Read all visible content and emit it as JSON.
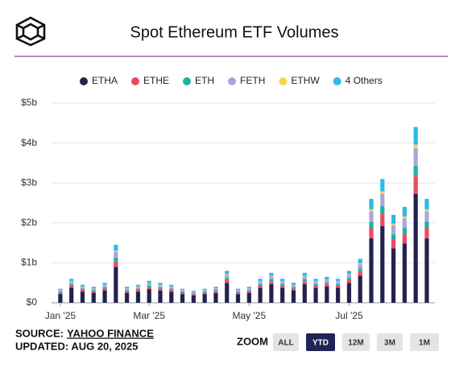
{
  "chart_data": {
    "type": "stacked-bar",
    "title": "Spot Ethereum ETF Volumes",
    "categories": [
      "Jan '25",
      null,
      null,
      null,
      null,
      null,
      null,
      null,
      "Mar '25",
      null,
      null,
      null,
      null,
      null,
      null,
      null,
      null,
      "May '25",
      null,
      null,
      null,
      null,
      null,
      null,
      null,
      null,
      "Jul '25",
      null,
      null,
      null,
      null,
      null,
      null,
      null
    ],
    "series": [
      {
        "name": "ETHA",
        "color": "#23224f",
        "values": [
          217000000.0,
          372000000.0,
          279000000.0,
          248000000.0,
          310000000.0,
          899000000.0,
          248000000.0,
          279000000.0,
          341000000.0,
          310000000.0,
          279000000.0,
          217000000.0,
          186000000.0,
          217000000.0,
          248000000.0,
          496000000.0,
          217000000.0,
          248000000.0,
          372000000.0,
          465000000.0,
          372000000.0,
          310000000.0,
          465000000.0,
          372000000.0,
          403000000.0,
          372000000.0,
          496000000.0,
          682000000.0,
          1612000000.0,
          1922000000.0,
          1364000000.0,
          1488000000.0,
          2728000000.0,
          1612000000.0
        ]
      },
      {
        "name": "ETHE",
        "color": "#ec4a64",
        "values": [
          35000000.0,
          60000000.0,
          45000000.0,
          40000000.0,
          50000000.0,
          145000000.0,
          40000000.0,
          45000000.0,
          55000000.0,
          50000000.0,
          45000000.0,
          35000000.0,
          30000000.0,
          35000000.0,
          40000000.0,
          80000000.0,
          35000000.0,
          40000000.0,
          60000000.0,
          75000000.0,
          60000000.0,
          50000000.0,
          75000000.0,
          60000000.0,
          65000000.0,
          60000000.0,
          80000000.0,
          110000000.0,
          260000000.0,
          310000000.0,
          220000000.0,
          240000000.0,
          440000000.0,
          260000000.0
        ]
      },
      {
        "name": "ETH",
        "color": "#1ab3a4",
        "values": [
          21000000.0,
          36000000.0,
          27000000.0,
          24000000.0,
          30000000.0,
          87000000.0,
          24000000.0,
          27000000.0,
          33000000.0,
          30000000.0,
          27000000.0,
          21000000.0,
          18000000.0,
          21000000.0,
          24000000.0,
          48000000.0,
          21000000.0,
          24000000.0,
          36000000.0,
          45000000.0,
          36000000.0,
          30000000.0,
          45000000.0,
          36000000.0,
          39000000.0,
          36000000.0,
          48000000.0,
          66000000.0,
          156000000.0,
          186000000.0,
          132000000.0,
          144000000.0,
          264000000.0,
          156000000.0
        ]
      },
      {
        "name": "FETH",
        "color": "#aba4df",
        "values": [
          35000000.0,
          60000000.0,
          45000000.0,
          40000000.0,
          50000000.0,
          145000000.0,
          40000000.0,
          45000000.0,
          55000000.0,
          50000000.0,
          45000000.0,
          35000000.0,
          30000000.0,
          35000000.0,
          40000000.0,
          80000000.0,
          35000000.0,
          40000000.0,
          60000000.0,
          75000000.0,
          60000000.0,
          50000000.0,
          75000000.0,
          60000000.0,
          65000000.0,
          60000000.0,
          80000000.0,
          110000000.0,
          260000000.0,
          310000000.0,
          220000000.0,
          240000000.0,
          440000000.0,
          260000000.0
        ]
      },
      {
        "name": "ETHW",
        "color": "#f4d64a",
        "values": [
          7000000.0,
          12000000.0,
          9000000.0,
          8000000.0,
          10000000.0,
          29000000.0,
          8000000.0,
          9000000.0,
          11000000.0,
          10000000.0,
          9000000.0,
          7000000.0,
          6000000.0,
          7000000.0,
          8000000.0,
          16000000.0,
          7000000.0,
          8000000.0,
          12000000.0,
          15000000.0,
          12000000.0,
          10000000.0,
          15000000.0,
          12000000.0,
          13000000.0,
          12000000.0,
          16000000.0,
          22000000.0,
          52000000.0,
          62000000.0,
          44000000.0,
          48000000.0,
          88000000.0,
          52000000.0
        ]
      },
      {
        "name": "4 Others",
        "color": "#2cbbe6",
        "values": [
          35000000.0,
          60000000.0,
          45000000.0,
          40000000.0,
          50000000.0,
          145000000.0,
          40000000.0,
          45000000.0,
          55000000.0,
          50000000.0,
          45000000.0,
          35000000.0,
          30000000.0,
          35000000.0,
          40000000.0,
          80000000.0,
          35000000.0,
          40000000.0,
          60000000.0,
          75000000.0,
          60000000.0,
          50000000.0,
          75000000.0,
          60000000.0,
          65000000.0,
          60000000.0,
          80000000.0,
          110000000.0,
          260000000.0,
          310000000.0,
          220000000.0,
          240000000.0,
          440000000.0,
          260000000.0
        ]
      }
    ],
    "ylim": [
      0,
      5000000000
    ],
    "yticks": [
      {
        "value": 0,
        "label": "$0"
      },
      {
        "value": 1000000000,
        "label": "$1b"
      },
      {
        "value": 2000000000,
        "label": "$2b"
      },
      {
        "value": 3000000000,
        "label": "$3b"
      },
      {
        "value": 4000000000,
        "label": "$4b"
      },
      {
        "value": 5000000000,
        "label": "$5b"
      }
    ],
    "grid": true,
    "legend": "top"
  },
  "footer": {
    "source_label": "SOURCE:",
    "source_name": "YAHOO FINANCE",
    "updated": "UPDATED: AUG 20, 2025",
    "zoom_label": "ZOOM",
    "zoom_buttons": [
      "ALL",
      "YTD",
      "12M",
      "3M",
      "1M"
    ],
    "zoom_active": 1
  }
}
